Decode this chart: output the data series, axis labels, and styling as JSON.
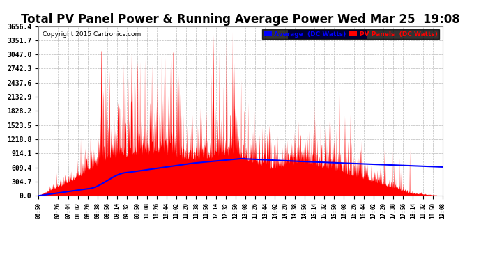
{
  "title": "Total PV Panel Power & Running Average Power Wed Mar 25  19:08",
  "copyright": "Copyright 2015 Cartronics.com",
  "legend_avg": "Average  (DC Watts)",
  "legend_pv": "PV Panels  (DC Watts)",
  "ymax": 3656.4,
  "yticks": [
    0.0,
    304.7,
    609.4,
    914.1,
    1218.8,
    1523.5,
    1828.2,
    2132.9,
    2437.6,
    2742.3,
    3047.0,
    3351.7,
    3656.4
  ],
  "bg_color": "#ffffff",
  "plot_bg_color": "#ffffff",
  "grid_color": "#bbbbbb",
  "pv_color": "#ff0000",
  "avg_color": "#0000ff",
  "title_fontsize": 12,
  "x_start_min": 410,
  "x_end_min": 1148,
  "time_labels": [
    "06:50",
    "07:26",
    "07:44",
    "08:02",
    "08:20",
    "08:38",
    "08:56",
    "09:14",
    "09:32",
    "09:50",
    "10:08",
    "10:26",
    "10:44",
    "11:02",
    "11:20",
    "11:38",
    "11:56",
    "12:14",
    "12:32",
    "12:50",
    "13:08",
    "13:26",
    "13:44",
    "14:02",
    "14:20",
    "14:38",
    "14:56",
    "15:14",
    "15:32",
    "15:50",
    "16:08",
    "16:26",
    "16:44",
    "17:02",
    "17:20",
    "17:38",
    "17:56",
    "18:14",
    "18:32",
    "18:50",
    "19:08"
  ]
}
